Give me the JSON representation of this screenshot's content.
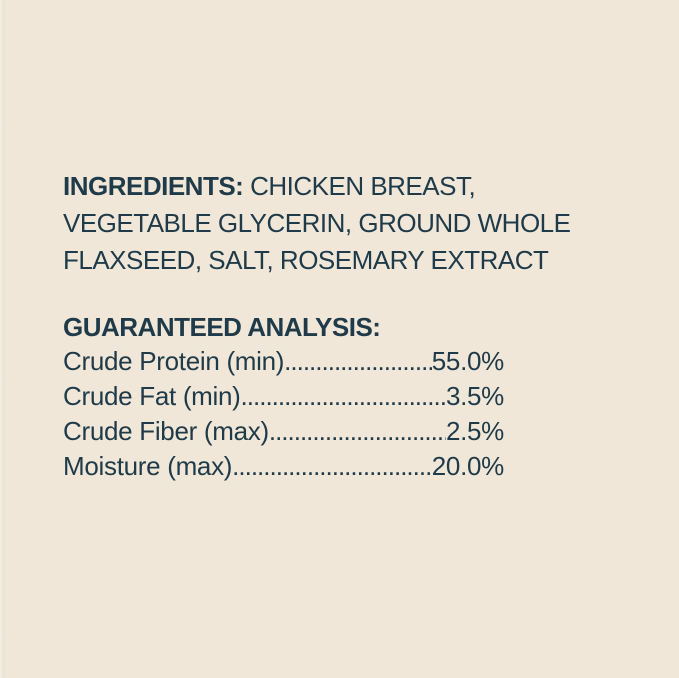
{
  "label": {
    "background_color": "#f0e7d8",
    "text_color": "#1f3a49",
    "ingredients": {
      "heading": "INGREDIENTS:",
      "line1_rest": "CHICKEN BREAST,",
      "line2": "VEGETABLE GLYCERIN, GROUND WHOLE",
      "line3": "FLAXSEED, SALT, ROSEMARY EXTRACT"
    },
    "guaranteed_analysis": {
      "heading": "GUARANTEED ANALYSIS:",
      "leader_dots": "..........................................................................................",
      "rows": [
        {
          "label": "Crude Protein (min)",
          "value": "55.0%"
        },
        {
          "label": "Crude Fat (min)",
          "value": "3.5%"
        },
        {
          "label": "Crude Fiber (max)",
          "value": "2.5%"
        },
        {
          "label": "Moisture (max)",
          "value": "20.0%"
        }
      ]
    }
  }
}
